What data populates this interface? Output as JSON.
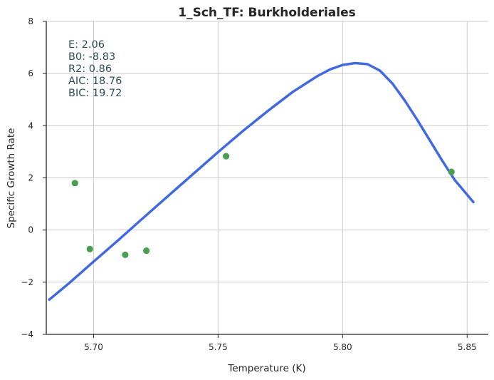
{
  "chart_data": {
    "type": "scatter",
    "title": "1_Sch_TF: Burkholderiales",
    "xlabel": "Temperature (K)",
    "ylabel": "Specific Growth Rate",
    "xlim": [
      5.681,
      5.8585
    ],
    "ylim": [
      -4,
      8
    ],
    "xticks": [
      5.7,
      5.75,
      5.8,
      5.85
    ],
    "xtick_labels": [
      "5.70",
      "5.75",
      "5.80",
      "5.85"
    ],
    "yticks": [
      -4,
      -2,
      0,
      2,
      4,
      6,
      8
    ],
    "ytick_labels": [
      "−4",
      "−2",
      "0",
      "2",
      "4",
      "6",
      "8"
    ],
    "grid": true,
    "colors": {
      "points": "#4a9e4f",
      "curve": "#4169e1",
      "annotation": "#2f4f4f"
    },
    "series": [
      {
        "kind": "scatter",
        "x": [
          5.6925,
          5.6985,
          5.7127,
          5.7212,
          5.7532,
          5.8437
        ],
        "y": [
          1.8,
          -0.73,
          -0.95,
          -0.79,
          2.83,
          2.23
        ]
      },
      {
        "kind": "line",
        "x": [
          5.6822,
          5.69,
          5.7,
          5.71,
          5.72,
          5.73,
          5.74,
          5.75,
          5.76,
          5.77,
          5.78,
          5.79,
          5.795,
          5.8,
          5.805,
          5.81,
          5.815,
          5.82,
          5.825,
          5.83,
          5.835,
          5.84,
          5.845,
          5.8525
        ],
        "y": [
          -2.67,
          -2.05,
          -1.21,
          -0.38,
          0.47,
          1.31,
          2.15,
          2.99,
          3.8,
          4.57,
          5.3,
          5.91,
          6.16,
          6.33,
          6.4,
          6.36,
          6.11,
          5.62,
          4.96,
          4.22,
          3.44,
          2.66,
          1.92,
          1.07
        ]
      }
    ],
    "annotation_lines": [
      "E:  2.06",
      "B0:  -8.83",
      "R2:  0.86",
      "AIC: 18.76",
      "BIC: 19.72"
    ]
  }
}
